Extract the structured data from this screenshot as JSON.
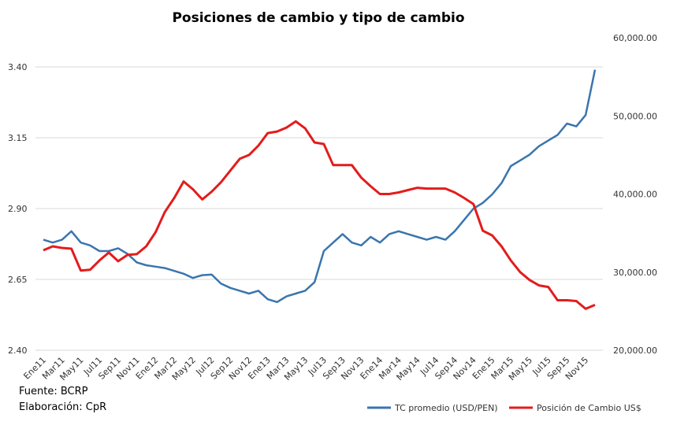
{
  "chart_data": {
    "type": "line",
    "title": "Posiciones de cambio y tipo de cambio",
    "x_tick_labels": [
      "Ene11",
      "Mar11",
      "May11",
      "Jul11",
      "Sep11",
      "Nov11",
      "Ene12",
      "Mar12",
      "May12",
      "Jul12",
      "Sep12",
      "Nov12",
      "Ene13",
      "Mar13",
      "May13",
      "Jul13",
      "Sep13",
      "Nov13",
      "Ene14",
      "Mar14",
      "May14",
      "Jul14",
      "Sep14",
      "Nov14",
      "Ene15",
      "Mar15",
      "May15",
      "Jul15",
      "Sep15",
      "Nov15"
    ],
    "x_months": [
      "Ene11",
      "Feb11",
      "Mar11",
      "Abr11",
      "May11",
      "Jun11",
      "Jul11",
      "Ago11",
      "Sep11",
      "Oct11",
      "Nov11",
      "Dic11",
      "Ene12",
      "Feb12",
      "Mar12",
      "Abr12",
      "May12",
      "Jun12",
      "Jul12",
      "Ago12",
      "Sep12",
      "Oct12",
      "Nov12",
      "Dic12",
      "Ene13",
      "Feb13",
      "Mar13",
      "Abr13",
      "May13",
      "Jun13",
      "Jul13",
      "Ago13",
      "Sep13",
      "Oct13",
      "Nov13",
      "Dic13",
      "Ene14",
      "Feb14",
      "Mar14",
      "Abr14",
      "May14",
      "Jun14",
      "Jul14",
      "Ago14",
      "Sep14",
      "Oct14",
      "Nov14",
      "Dic14",
      "Ene15",
      "Feb15",
      "Mar15",
      "Abr15",
      "May15",
      "Jun15",
      "Jul15",
      "Ago15",
      "Sep15",
      "Oct15",
      "Nov15",
      "Dic15"
    ],
    "y_left": {
      "lim": [
        2.4,
        3.4
      ],
      "ticks": [
        "2.40",
        "2.65",
        "2.90",
        "3.15",
        "3.40"
      ]
    },
    "y_right": {
      "lim": [
        20000,
        60000
      ],
      "ticks": [
        "20,000.00",
        "30,000.00",
        "40,000.00",
        "50,000.00",
        "60,000.00"
      ]
    },
    "grid": "horizontal",
    "legend_position": "bottom-right",
    "series": [
      {
        "name": "TC promedio (USD/PEN)",
        "color": "#3a75ad",
        "axis": "left",
        "values": [
          2.79,
          2.78,
          2.79,
          2.82,
          2.78,
          2.77,
          2.75,
          2.75,
          2.76,
          2.74,
          2.71,
          2.7,
          2.695,
          2.69,
          2.68,
          2.67,
          2.655,
          2.665,
          2.667,
          2.635,
          2.62,
          2.61,
          2.6,
          2.61,
          2.58,
          2.57,
          2.59,
          2.6,
          2.61,
          2.64,
          2.75,
          2.78,
          2.81,
          2.78,
          2.77,
          2.8,
          2.78,
          2.81,
          2.82,
          2.81,
          2.8,
          2.79,
          2.8,
          2.79,
          2.82,
          2.86,
          2.9,
          2.92,
          2.95,
          2.99,
          3.05,
          3.07,
          3.09,
          3.12,
          3.14,
          3.16,
          3.2,
          3.19,
          3.23,
          3.39
        ]
      },
      {
        "name": "Posición de Cambio US$",
        "color": "#e31c1c",
        "axis": "right",
        "values": [
          32800,
          33300,
          33100,
          33000,
          30200,
          30300,
          31500,
          32500,
          31400,
          32200,
          32300,
          33300,
          35100,
          37700,
          39500,
          41600,
          40600,
          39300,
          40300,
          41500,
          43000,
          44500,
          45000,
          46200,
          47800,
          48000,
          48500,
          49300,
          48400,
          46600,
          46400,
          43700,
          43700,
          43700,
          42100,
          41000,
          40000,
          40000,
          40200,
          40500,
          40800,
          40700,
          40700,
          40700,
          40200,
          39500,
          38700,
          35300,
          34700,
          33300,
          31500,
          30000,
          29000,
          28300,
          28100,
          26400,
          26400,
          26300,
          25300,
          25800
        ]
      }
    ]
  },
  "footer": {
    "source": "Fuente: BCRP",
    "author": "Elaboración: CpR"
  }
}
